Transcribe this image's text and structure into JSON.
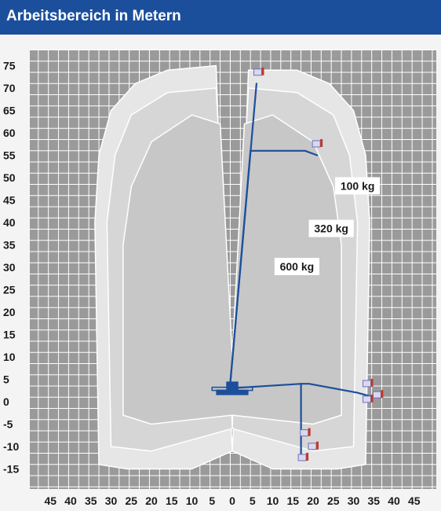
{
  "header": {
    "title": "Arbeitsbereich in Metern"
  },
  "colors": {
    "header_bg": "#1b4f9c",
    "grid_bg": "#9a9a9a",
    "grid_line": "#ffffff",
    "zone_100": "#e6e6e6",
    "zone_320": "#d6d6d6",
    "zone_600": "#c7c7c7",
    "boom": "#1b4f9c"
  },
  "chart_data": {
    "type": "diagram",
    "title": "Arbeitsbereich in Metern",
    "x_tick_labels": [
      "45",
      "40",
      "35",
      "30",
      "25",
      "20",
      "15",
      "10",
      "5",
      "0",
      "5",
      "10",
      "15",
      "20",
      "25",
      "30",
      "35",
      "40",
      "45"
    ],
    "y_tick_labels": [
      "75",
      "70",
      "65",
      "60",
      "55",
      "50",
      "45",
      "40",
      "35",
      "30",
      "25",
      "20",
      "15",
      "10",
      "5",
      "0",
      "-5",
      "-10",
      "-15"
    ],
    "xlim": [
      -50,
      50
    ],
    "ylim": [
      -19,
      80
    ],
    "grid": true,
    "zones": [
      {
        "label": "100 kg",
        "outline": [
          [
            -33,
            -14
          ],
          [
            -34,
            40
          ],
          [
            -33,
            55
          ],
          [
            -30,
            65
          ],
          [
            -24,
            71
          ],
          [
            -16,
            74
          ],
          [
            -4,
            75
          ],
          [
            -2,
            25
          ],
          [
            0,
            -11
          ],
          [
            2,
            25
          ],
          [
            4,
            74
          ],
          [
            16,
            74
          ],
          [
            24,
            71
          ],
          [
            30,
            65
          ],
          [
            33,
            55
          ],
          [
            34,
            40
          ],
          [
            33,
            -14
          ],
          [
            26,
            -15
          ],
          [
            10,
            -15
          ],
          [
            0,
            -11
          ],
          [
            -10,
            -15
          ],
          [
            -26,
            -15
          ]
        ]
      },
      {
        "label": "320 kg",
        "outline": [
          [
            -30,
            -10
          ],
          [
            -31,
            40
          ],
          [
            -29,
            55
          ],
          [
            -25,
            64
          ],
          [
            -16,
            69
          ],
          [
            -4,
            70
          ],
          [
            -1,
            20
          ],
          [
            0,
            -6
          ],
          [
            1,
            20
          ],
          [
            4,
            70
          ],
          [
            16,
            69
          ],
          [
            25,
            64
          ],
          [
            29,
            55
          ],
          [
            31,
            40
          ],
          [
            30,
            -10
          ],
          [
            20,
            -11
          ],
          [
            0,
            -6
          ],
          [
            -20,
            -11
          ]
        ]
      },
      {
        "label": "600 kg",
        "outline": [
          [
            -27,
            -3
          ],
          [
            -27,
            35
          ],
          [
            -25,
            48
          ],
          [
            -20,
            58
          ],
          [
            -10,
            64
          ],
          [
            -3,
            62
          ],
          [
            0,
            10
          ],
          [
            3,
            62
          ],
          [
            10,
            64
          ],
          [
            20,
            58
          ],
          [
            25,
            48
          ],
          [
            27,
            35
          ],
          [
            27,
            -3
          ],
          [
            20,
            -5
          ],
          [
            0,
            -3
          ],
          [
            -20,
            -5
          ]
        ]
      }
    ],
    "load_labels": [
      {
        "text": "100 kg",
        "x": 31,
        "y": 48
      },
      {
        "text": "320 kg",
        "x": 24.5,
        "y": 38.5
      },
      {
        "text": "600 kg",
        "x": 16,
        "y": 30
      }
    ],
    "boom_positions": [
      {
        "name": "max-height",
        "points": [
          [
            -0.5,
            4
          ],
          [
            6,
            71
          ]
        ]
      },
      {
        "name": "outreach-55",
        "points": [
          [
            -0.5,
            4
          ],
          [
            4.5,
            56
          ],
          [
            18,
            56
          ],
          [
            21,
            55
          ]
        ]
      },
      {
        "name": "horizontal",
        "points": [
          [
            -0.5,
            3
          ],
          [
            17,
            4
          ],
          [
            19,
            4
          ],
          [
            31,
            2
          ],
          [
            35,
            1
          ]
        ]
      },
      {
        "name": "lowered",
        "points": [
          [
            17,
            4
          ],
          [
            17,
            -5
          ],
          [
            17,
            -9
          ],
          [
            17,
            -13
          ]
        ]
      }
    ],
    "chassis": {
      "x_from": -4,
      "x_to": 4,
      "y": 2
    }
  }
}
